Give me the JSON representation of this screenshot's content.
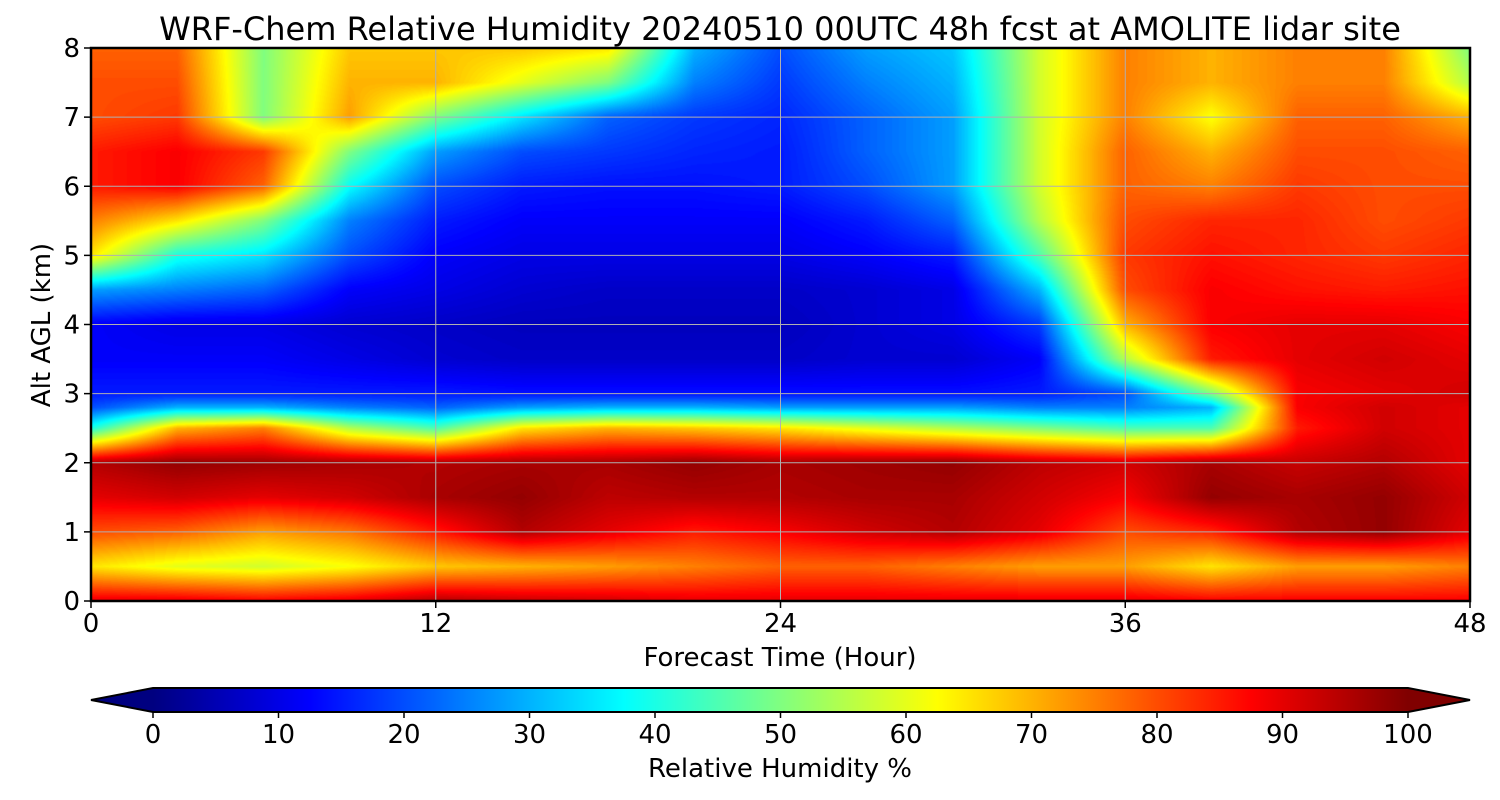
{
  "chart_data": {
    "type": "heatmap",
    "title": "WRF-Chem Relative Humidity 20240510 00UTC 48h fcst at AMOLITE lidar site",
    "xlabel": "Forecast Time (Hour)",
    "ylabel": "Alt AGL (km)",
    "xlim": [
      0,
      48
    ],
    "ylim": [
      0,
      8
    ],
    "x_ticks": [
      "0",
      "12",
      "24",
      "36",
      "48"
    ],
    "y_ticks": [
      "0",
      "1",
      "2",
      "3",
      "4",
      "5",
      "6",
      "7",
      "8"
    ],
    "grid": true,
    "colormap": "jet",
    "colorbar": {
      "label": "Relative Humidity %",
      "range": [
        0,
        100
      ],
      "ticks": [
        "0",
        "10",
        "20",
        "30",
        "40",
        "50",
        "60",
        "70",
        "80",
        "90",
        "100"
      ],
      "extend": "both",
      "orientation": "horizontal"
    },
    "x": [
      0,
      3,
      6,
      9,
      12,
      15,
      18,
      21,
      24,
      27,
      30,
      33,
      36,
      39,
      42,
      45,
      48
    ],
    "y": [
      0,
      0.5,
      1,
      1.5,
      2,
      2.5,
      2.8,
      3,
      3.5,
      4,
      4.5,
      5,
      5.5,
      6,
      6.5,
      7,
      7.5,
      8
    ],
    "z": [
      [
        90,
        90,
        88,
        90,
        95,
        93,
        92,
        90,
        90,
        90,
        90,
        90,
        90,
        88,
        88,
        88,
        88
      ],
      [
        65,
        60,
        58,
        62,
        68,
        70,
        72,
        75,
        78,
        78,
        75,
        72,
        72,
        65,
        72,
        72,
        75
      ],
      [
        80,
        78,
        72,
        76,
        85,
        95,
        90,
        85,
        88,
        92,
        95,
        90,
        80,
        84,
        95,
        98,
        90
      ],
      [
        90,
        92,
        90,
        92,
        96,
        98,
        94,
        95,
        95,
        96,
        96,
        92,
        88,
        98,
        96,
        98,
        92
      ],
      [
        95,
        98,
        97,
        96,
        95,
        96,
        96,
        98,
        96,
        97,
        98,
        94,
        92,
        96,
        93,
        95,
        90
      ],
      [
        40,
        70,
        75,
        55,
        45,
        65,
        70,
        68,
        65,
        60,
        55,
        50,
        45,
        45,
        85,
        92,
        90
      ],
      [
        20,
        30,
        30,
        25,
        22,
        28,
        30,
        30,
        28,
        28,
        28,
        25,
        25,
        30,
        88,
        92,
        90
      ],
      [
        15,
        15,
        15,
        15,
        15,
        14,
        14,
        14,
        14,
        14,
        14,
        15,
        20,
        50,
        88,
        90,
        92
      ],
      [
        12,
        12,
        12,
        10,
        8,
        7,
        7,
        7,
        7,
        8,
        8,
        12,
        55,
        85,
        90,
        92,
        90
      ],
      [
        12,
        10,
        10,
        8,
        7,
        6,
        6,
        6,
        6,
        8,
        10,
        18,
        70,
        88,
        90,
        90,
        88
      ],
      [
        28,
        25,
        22,
        12,
        10,
        8,
        7,
        7,
        7,
        8,
        10,
        30,
        80,
        88,
        86,
        85,
        86
      ],
      [
        65,
        40,
        35,
        20,
        12,
        10,
        10,
        10,
        10,
        12,
        15,
        45,
        82,
        86,
        84,
        82,
        84
      ],
      [
        75,
        65,
        50,
        25,
        15,
        12,
        12,
        12,
        12,
        15,
        22,
        55,
        80,
        84,
        84,
        80,
        82
      ],
      [
        85,
        88,
        78,
        38,
        20,
        15,
        14,
        14,
        15,
        20,
        28,
        58,
        78,
        75,
        82,
        80,
        80
      ],
      [
        85,
        88,
        82,
        50,
        28,
        20,
        18,
        16,
        15,
        22,
        28,
        58,
        78,
        70,
        80,
        80,
        78
      ],
      [
        80,
        82,
        50,
        72,
        50,
        35,
        22,
        18,
        16,
        22,
        28,
        58,
        75,
        62,
        78,
        78,
        70
      ],
      [
        80,
        80,
        50,
        70,
        70,
        60,
        50,
        25,
        18,
        25,
        30,
        58,
        75,
        70,
        75,
        75,
        55
      ],
      [
        78,
        78,
        50,
        68,
        68,
        68,
        65,
        30,
        20,
        28,
        32,
        58,
        75,
        70,
        75,
        75,
        50
      ]
    ]
  }
}
